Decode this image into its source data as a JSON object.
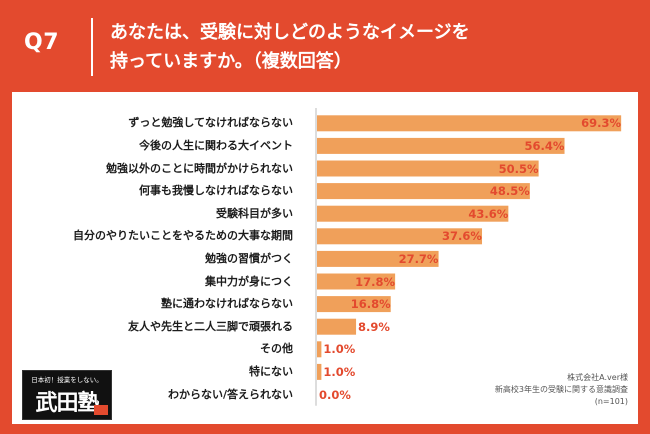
{
  "header": {
    "question_number": "Q7",
    "question_line1": "あなたは、受験に対しどのようなイメージを",
    "question_line2": "持っていますか。（複数回答）"
  },
  "logo": {
    "tagline": "日本初！授業をしない。",
    "name": "武田塾"
  },
  "source": {
    "line1": "株式会社A.ver様",
    "line2": "新高校3年生の受験に関する意識調査",
    "line3": "(n=101)"
  },
  "colors": {
    "background": "#e34a2e",
    "bar": "#f0a05a",
    "value_text": "#e34a2e"
  },
  "chart_data": {
    "type": "bar",
    "orientation": "horizontal",
    "categories": [
      "ずっと勉強してなければならない",
      "今後の人生に関わる大イベント",
      "勉強以外のことに時間がかけられない",
      "何事も我慢しなければならない",
      "受験科目が多い",
      "自分のやりたいことをやるための大事な期間",
      "勉強の習慣がつく",
      "集中力が身につく",
      "塾に通わなければならない",
      "友人や先生と二人三脚で頑張れる",
      "その他",
      "特にない",
      "わからない/答えられない"
    ],
    "values": [
      69.3,
      56.4,
      50.5,
      48.5,
      43.6,
      37.6,
      27.7,
      17.8,
      16.8,
      8.9,
      1.0,
      1.0,
      0.0
    ],
    "value_labels": [
      "69.3%",
      "56.4%",
      "50.5%",
      "48.5%",
      "43.6%",
      "37.6%",
      "27.7%",
      "17.8%",
      "16.8%",
      "8.9%",
      "1.0%",
      "1.0%",
      "0.0%"
    ],
    "xlim": [
      0,
      72
    ],
    "grid": false,
    "legend": "none"
  }
}
